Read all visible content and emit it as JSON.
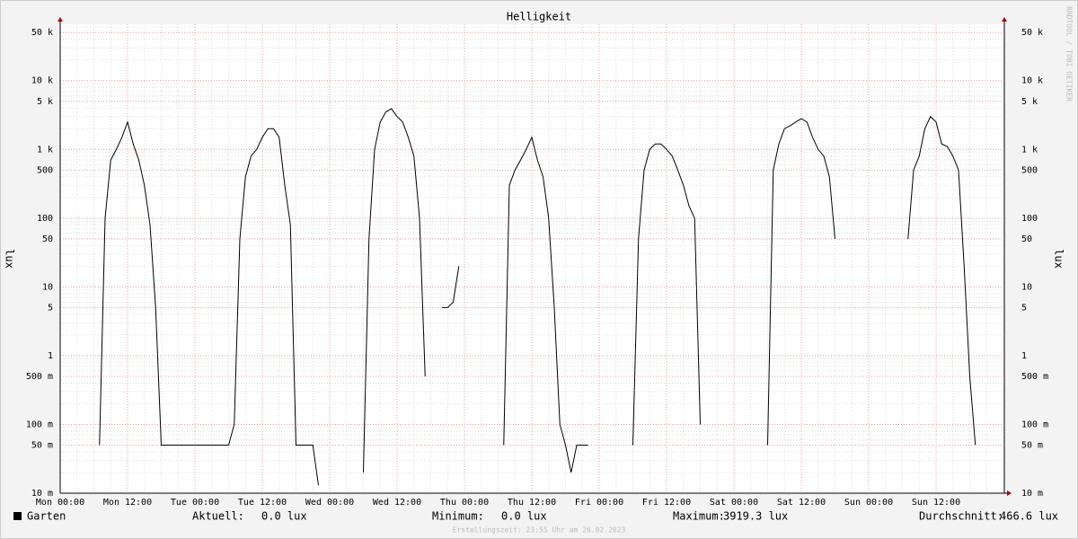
{
  "chart_data": {
    "type": "line",
    "title": "Helligkeit",
    "y_label": "lux",
    "watermark": "RRDTOOL / TOBI OETIKER",
    "log_scale": true,
    "grid": true,
    "ylim": [
      0.01,
      66000
    ],
    "yticks": [
      {
        "value": 0.01,
        "label": "10 m"
      },
      {
        "value": 0.05,
        "label": "50 m"
      },
      {
        "value": 0.1,
        "label": "100 m"
      },
      {
        "value": 0.5,
        "label": "500 m"
      },
      1,
      5,
      10,
      50,
      100,
      500,
      {
        "value": 1000,
        "label": "1 k"
      },
      {
        "value": 5000,
        "label": "5 k"
      },
      {
        "value": 10000,
        "label": "10 k"
      },
      {
        "value": 50000,
        "label": "50 k"
      }
    ],
    "categories": [
      "Mon 00:00",
      null,
      null,
      null,
      null,
      null,
      null,
      null,
      null,
      null,
      null,
      null,
      "Mon 12:00",
      null,
      null,
      null,
      null,
      null,
      null,
      null,
      null,
      null,
      null,
      null,
      "Tue 00:00",
      null,
      null,
      null,
      null,
      null,
      null,
      null,
      null,
      null,
      null,
      null,
      "Tue 12:00",
      null,
      null,
      null,
      null,
      null,
      null,
      null,
      null,
      null,
      null,
      null,
      "Wed 00:00",
      null,
      null,
      null,
      null,
      null,
      null,
      null,
      null,
      null,
      null,
      null,
      "Wed 12:00",
      null,
      null,
      null,
      null,
      null,
      null,
      null,
      null,
      null,
      null,
      null,
      "Thu 00:00",
      null,
      null,
      null,
      null,
      null,
      null,
      null,
      null,
      null,
      null,
      null,
      "Thu 12:00",
      null,
      null,
      null,
      null,
      null,
      null,
      null,
      null,
      null,
      null,
      null,
      "Fri 00:00",
      null,
      null,
      null,
      null,
      null,
      null,
      null,
      null,
      null,
      null,
      null,
      "Fri 12:00",
      null,
      null,
      null,
      null,
      null,
      null,
      null,
      null,
      null,
      null,
      null,
      "Sat 00:00",
      null,
      null,
      null,
      null,
      null,
      null,
      null,
      null,
      null,
      null,
      null,
      "Sat 12:00",
      null,
      null,
      null,
      null,
      null,
      null,
      null,
      null,
      null,
      null,
      null,
      "Sun 00:00",
      null,
      null,
      null,
      null,
      null,
      null,
      null,
      null,
      null,
      null,
      null,
      "Sun 12:00",
      null,
      null,
      null,
      null,
      null,
      null,
      null,
      null,
      null,
      null,
      null
    ],
    "series": [
      {
        "name": "Garten",
        "color": "#000000",
        "values": [
          null,
          null,
          null,
          null,
          null,
          null,
          null,
          0.05,
          100,
          700,
          1000,
          1500,
          2500,
          1200,
          700,
          300,
          80,
          5,
          0.05,
          0.05,
          0.05,
          0.05,
          0.05,
          0.05,
          0.05,
          0.05,
          0.05,
          0.05,
          0.05,
          0.05,
          0.05,
          0.1,
          50,
          400,
          800,
          1000,
          1500,
          2000,
          2000,
          1500,
          300,
          80,
          0.05,
          0.05,
          0.05,
          0.05,
          0.013,
          null,
          null,
          null,
          null,
          null,
          null,
          null,
          0.02,
          50,
          1000,
          2500,
          3500,
          3900,
          3000,
          2500,
          1500,
          800,
          100,
          0.5,
          null,
          null,
          5,
          5,
          6,
          20,
          null,
          null,
          null,
          null,
          null,
          null,
          null,
          0.05,
          300,
          500,
          700,
          1000,
          1500,
          700,
          400,
          100,
          5,
          0.1,
          0.05,
          0.02,
          0.05,
          0.05,
          0.05,
          null,
          null,
          null,
          null,
          null,
          null,
          null,
          0.05,
          50,
          500,
          1000,
          1200,
          1200,
          1000,
          800,
          500,
          300,
          150,
          100,
          0.1,
          null,
          null,
          null,
          null,
          null,
          null,
          null,
          null,
          null,
          null,
          null,
          0.05,
          500,
          1200,
          2000,
          2200,
          2500,
          2800,
          2500,
          1500,
          1000,
          800,
          400,
          50,
          null,
          null,
          null,
          null,
          null,
          null,
          null,
          null,
          null,
          null,
          null,
          null,
          50,
          500,
          800,
          2000,
          3000,
          2500,
          1200,
          1100,
          800,
          500,
          20,
          0.5,
          0.05,
          null,
          null,
          null,
          null
        ]
      }
    ],
    "stats": [
      {
        "label": "Aktuell:",
        "value": "0.0 lux"
      },
      {
        "label": "Minimum:",
        "value": "0.0 lux"
      },
      {
        "label": "Maximum:",
        "value": "3919.3 lux"
      },
      {
        "label": "Durchschnitt:",
        "value": "466.6 lux"
      }
    ],
    "footer": "Erstellungszeit: 23:55 Uhr am 26.02.2023"
  }
}
